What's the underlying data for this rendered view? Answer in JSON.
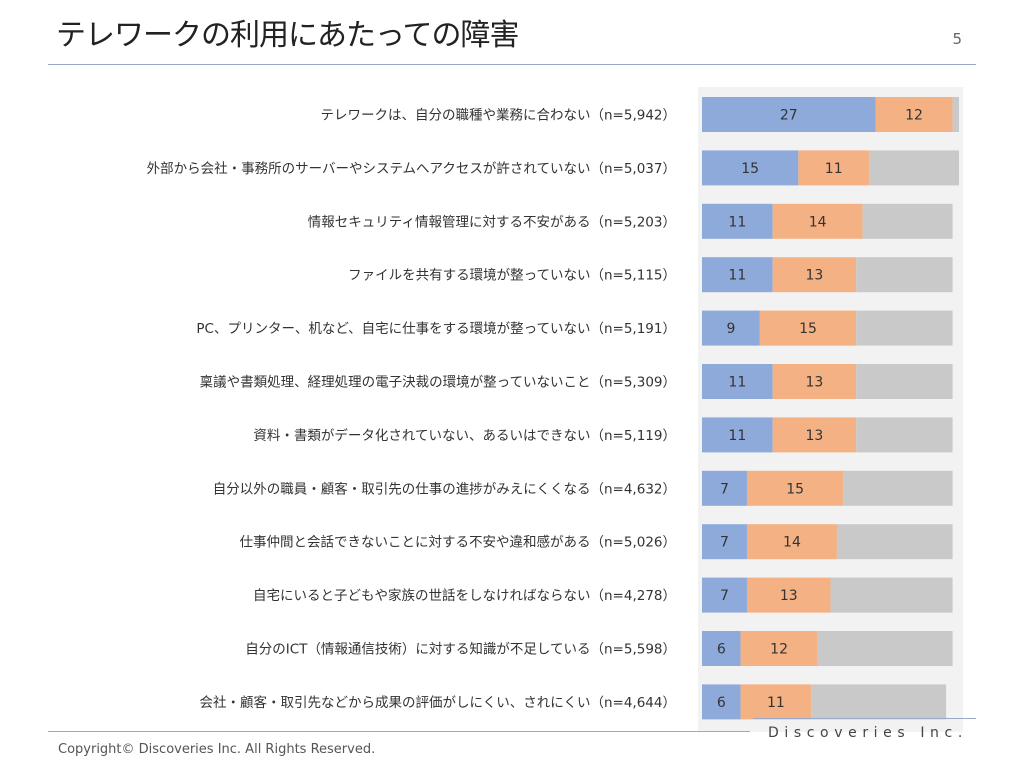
{
  "slide": {
    "title": "テレワークの利用にあたっての障害",
    "page_number": "5",
    "copyright": "Copyright© Discoveries Inc. All Rights Reserved.",
    "brand": "Discoveries Inc."
  },
  "chart_data": {
    "type": "bar",
    "orientation": "horizontal",
    "stacked": true,
    "categories": [
      "テレワークは、自分の職種や業務に合わない（n=5,942）",
      "外部から会社・事務所のサーバーやシステムへアクセスが許されていない（n=5,037）",
      "情報セキュリティ情報管理に対する不安がある（n=5,203）",
      "ファイルを共有する環境が整っていない（n=5,115）",
      "PC、プリンター、机など、自宅に仕事をする環境が整っていない（n=5,191）",
      "稟議や書類処理、経理処理の電子決裁の環境が整っていないこと（n=5,309）",
      "資料・書類がデータ化されていない、あるいはできない（n=5,119）",
      "自分以外の職員・顧客・取引先の仕事の進捗がみえにくくなる（n=4,632）",
      "仕事仲間と会話できないことに対する不安や違和感がある（n=5,026）",
      "自宅にいると子どもや家族の世話をしなければならない（n=4,278）",
      "自分のICT（情報通信技術）に対する知識が不足している（n=5,598）",
      "会社・顧客・取引先などから成果の評価がしにくい、されにくい（n=4,644）"
    ],
    "series": [
      {
        "values": [
          27,
          15,
          11,
          11,
          9,
          11,
          11,
          7,
          7,
          7,
          6,
          6
        ],
        "color": "#8eaadb",
        "labeled": true
      },
      {
        "values": [
          12,
          11,
          14,
          13,
          15,
          13,
          13,
          15,
          14,
          13,
          12,
          11
        ],
        "color": "#f4b183",
        "labeled": true
      },
      {
        "values": [
          1,
          14,
          14,
          15,
          15,
          15,
          15,
          17,
          18,
          19,
          21,
          21
        ],
        "color": "#c9c9c9",
        "labeled": false
      }
    ],
    "xlim": [
      0,
      40
    ],
    "title": "",
    "xlabel": "",
    "ylabel": "",
    "grid": false,
    "legend": "none"
  }
}
